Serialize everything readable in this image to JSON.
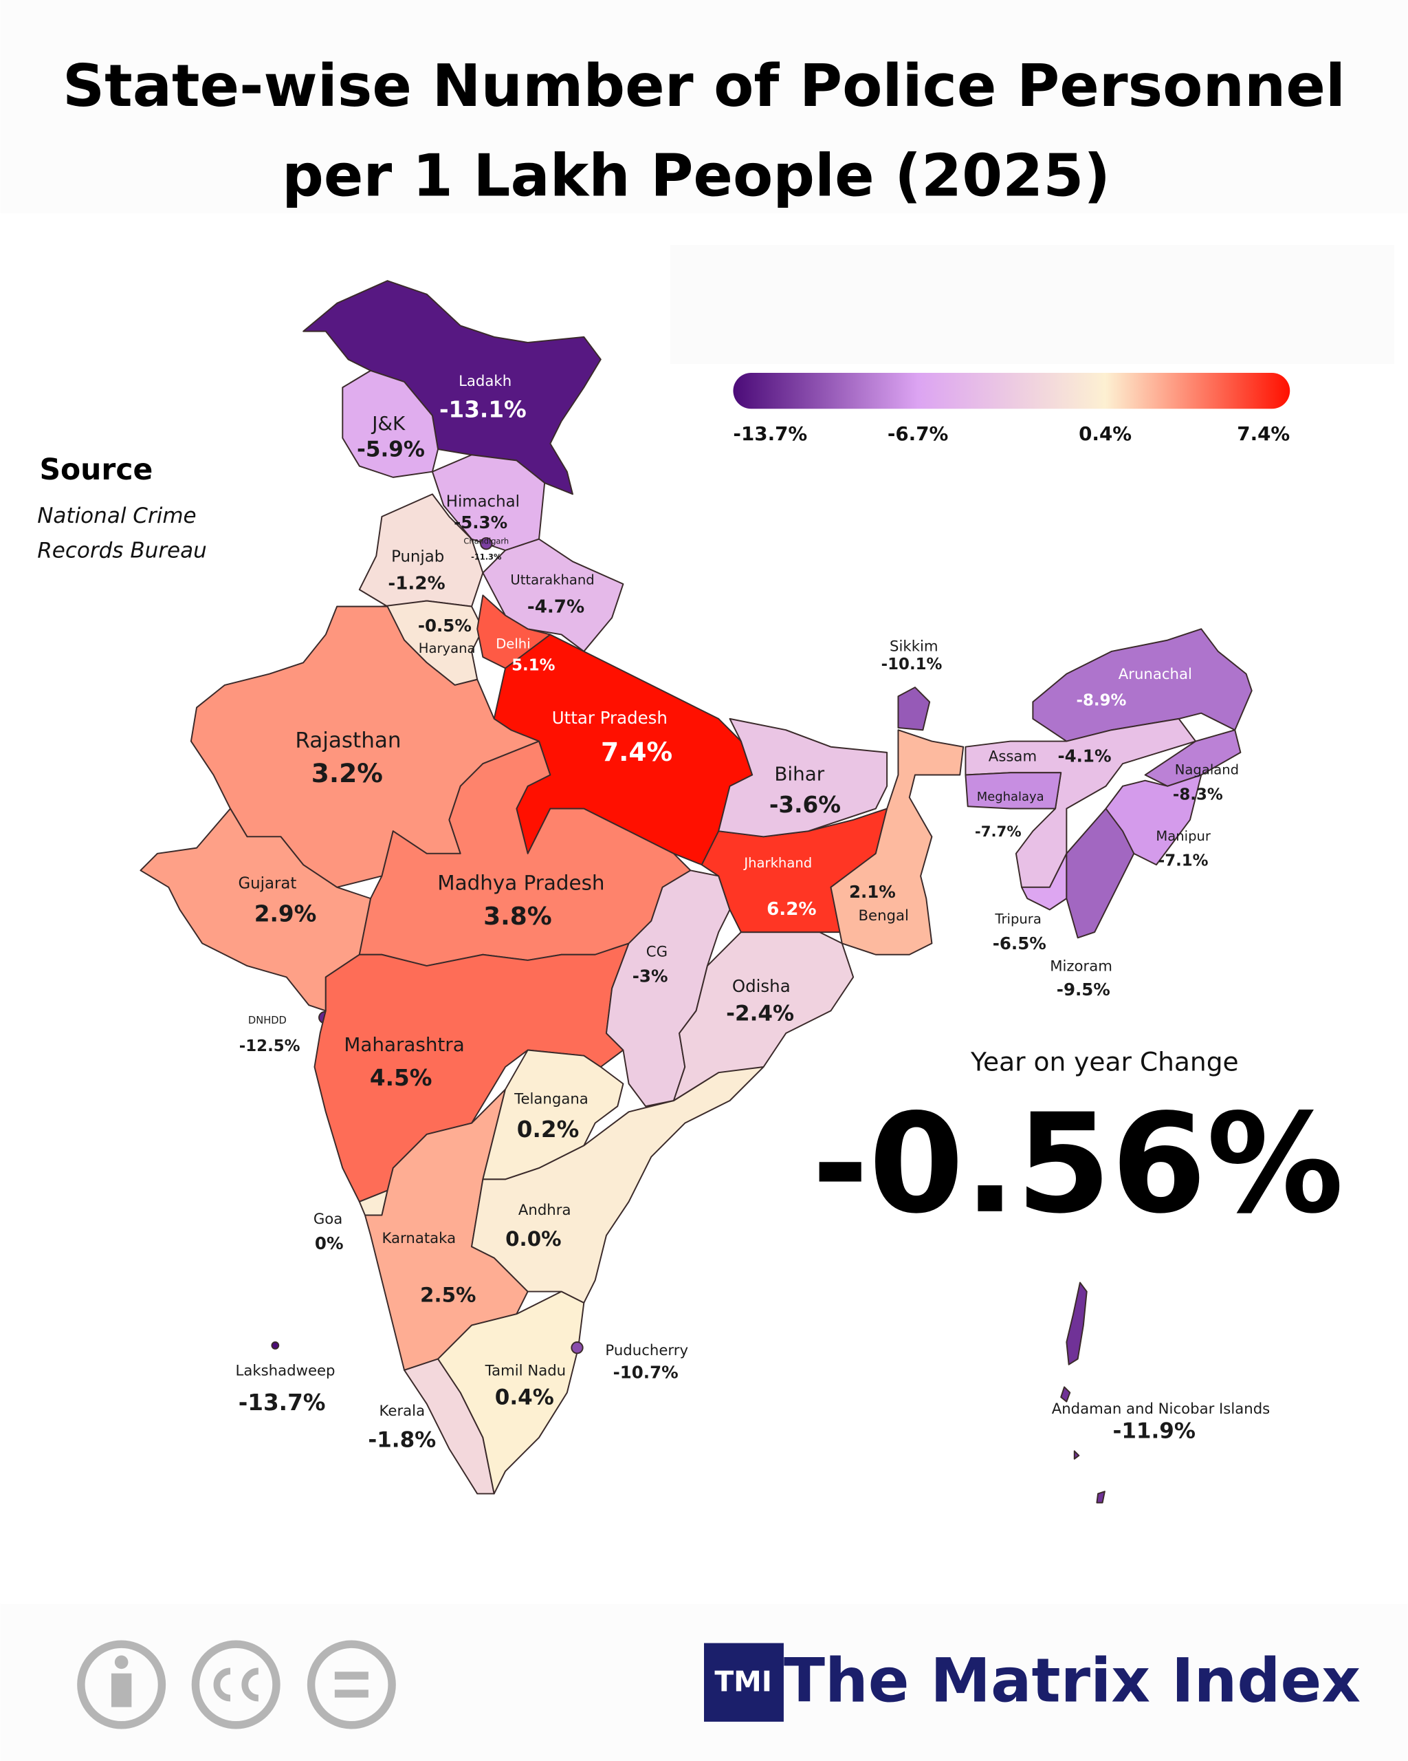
{
  "chart_data": {
    "type": "choropleth",
    "title_lines": [
      "State-wise Number of Police Personnel",
      "per 1 Lakh People (2025)"
    ],
    "source_heading": "Source",
    "source_lines": [
      "National Crime",
      "Records Bureau"
    ],
    "colorscale": {
      "ticks": [
        {
          "value": -13.7,
          "label": "-13.7%"
        },
        {
          "value": -6.7,
          "label": "-6.7%"
        },
        {
          "value": 0.4,
          "label": "0.4%"
        },
        {
          "value": 7.4,
          "label": "7.4%"
        }
      ],
      "colors": [
        "#4b0b78",
        "#dca4f2",
        "#fdf0d2",
        "#ff1000"
      ]
    },
    "regions": [
      {
        "name": "Ladakh",
        "value": -13.1,
        "value_label": "-13.1%"
      },
      {
        "name": "J&K",
        "value": -5.9,
        "value_label": "-5.9%"
      },
      {
        "name": "Himachal",
        "value": -5.3,
        "value_label": "-5.3%"
      },
      {
        "name": "Chandigarh",
        "value": -11.3,
        "value_label": "-11.3%"
      },
      {
        "name": "Punjab",
        "value": -1.2,
        "value_label": "-1.2%"
      },
      {
        "name": "Uttarakhand",
        "value": -4.7,
        "value_label": "-4.7%"
      },
      {
        "name": "Haryana",
        "value": -0.5,
        "value_label": "-0.5%"
      },
      {
        "name": "Delhi",
        "value": 5.1,
        "value_label": "5.1%"
      },
      {
        "name": "Uttar Pradesh",
        "value": 7.4,
        "value_label": "7.4%"
      },
      {
        "name": "Rajasthan",
        "value": 3.2,
        "value_label": "3.2%"
      },
      {
        "name": "Gujarat",
        "value": 2.9,
        "value_label": "2.9%"
      },
      {
        "name": "Madhya Pradesh",
        "value": 3.8,
        "value_label": "3.8%"
      },
      {
        "name": "DNHDD",
        "value": -12.5,
        "value_label": "-12.5%"
      },
      {
        "name": "Maharashtra",
        "value": 4.5,
        "value_label": "4.5%"
      },
      {
        "name": "Goa",
        "value": 0,
        "value_label": "0%"
      },
      {
        "name": "Karnataka",
        "value": 2.5,
        "value_label": "2.5%"
      },
      {
        "name": "Lakshadweep",
        "value": -13.7,
        "value_label": "-13.7%"
      },
      {
        "name": "Kerala",
        "value": -1.8,
        "value_label": "-1.8%"
      },
      {
        "name": "Tamil Nadu",
        "value": 0.4,
        "value_label": "0.4%"
      },
      {
        "name": "Puducherry",
        "value": -10.7,
        "value_label": "-10.7%"
      },
      {
        "name": "Andhra",
        "value": 0.0,
        "value_label": "0.0%"
      },
      {
        "name": "Telangana",
        "value": 0.2,
        "value_label": "0.2%"
      },
      {
        "name": "CG",
        "value": -3,
        "value_label": "-3%"
      },
      {
        "name": "Odisha",
        "value": -2.4,
        "value_label": "-2.4%"
      },
      {
        "name": "Jharkhand",
        "value": 6.2,
        "value_label": "6.2%"
      },
      {
        "name": "Bihar",
        "value": -3.6,
        "value_label": "-3.6%"
      },
      {
        "name": "Bengal",
        "value": 2.1,
        "value_label": "2.1%"
      },
      {
        "name": "Sikkim",
        "value": -10.1,
        "value_label": "-10.1%"
      },
      {
        "name": "Arunachal",
        "value": -8.9,
        "value_label": "-8.9%"
      },
      {
        "name": "Assam",
        "value": -4.1,
        "value_label": "-4.1%"
      },
      {
        "name": "Meghalaya",
        "value": -7.7,
        "value_label": "-7.7%"
      },
      {
        "name": "Nagaland",
        "value": -8.3,
        "value_label": "-8.3%"
      },
      {
        "name": "Manipur",
        "value": -7.1,
        "value_label": "-7.1%"
      },
      {
        "name": "Tripura",
        "value": -6.5,
        "value_label": "-6.5%"
      },
      {
        "name": "Mizoram",
        "value": -9.5,
        "value_label": "-9.5%"
      },
      {
        "name": "Andaman and Nicobar Islands",
        "value": -11.9,
        "value_label": "-11.9%"
      }
    ],
    "summary": {
      "label": "Year on year Change",
      "value": -0.56,
      "value_label": "-0.56%"
    },
    "brand": {
      "logo": "TMI",
      "name": "The Matrix Index"
    }
  }
}
